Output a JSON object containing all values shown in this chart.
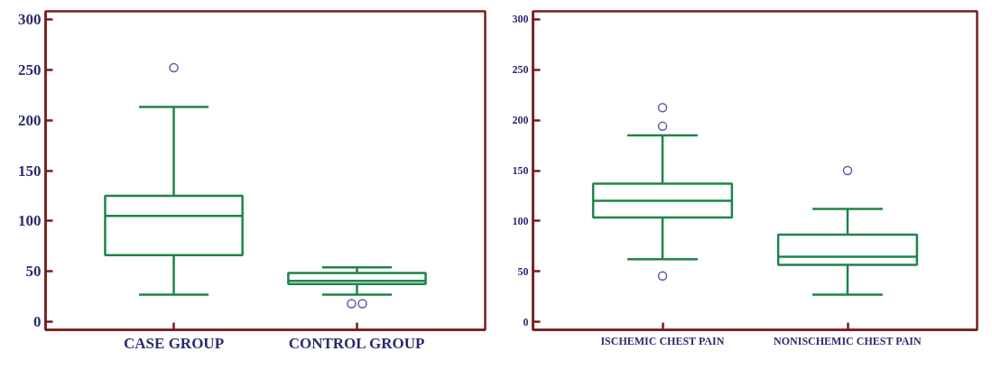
{
  "chart_data": [
    {
      "type": "box",
      "categories": [
        "CASE GROUP",
        "CONTROL GROUP"
      ],
      "ylim": [
        -8,
        308
      ],
      "yticks": [
        0,
        50,
        100,
        150,
        200,
        250,
        300
      ],
      "grid": false,
      "color": "#1e8449",
      "boxes": [
        {
          "low": 27,
          "q1": 66,
          "median": 105,
          "q3": 125,
          "high": 213,
          "outliers": [
            252
          ]
        },
        {
          "low": 27,
          "q1": 37.5,
          "median": 40.5,
          "q3": 48.5,
          "high": 54,
          "outliers": [
            18,
            18
          ]
        }
      ]
    },
    {
      "type": "box",
      "categories": [
        "ISCHEMIC CHEST PAIN",
        "NONISCHEMIC CHEST PAIN"
      ],
      "ylim": [
        -8,
        308
      ],
      "yticks": [
        0,
        50,
        100,
        150,
        200,
        250,
        300
      ],
      "grid": false,
      "color": "#1e8449",
      "boxes": [
        {
          "low": 62,
          "q1": 103.5,
          "median": 120,
          "q3": 137,
          "high": 185,
          "outliers": [
            212.5,
            194,
            45.5
          ]
        },
        {
          "low": 27,
          "q1": 56.5,
          "median": 64.5,
          "q3": 86.5,
          "high": 112,
          "outliers": [
            150
          ]
        }
      ]
    }
  ]
}
